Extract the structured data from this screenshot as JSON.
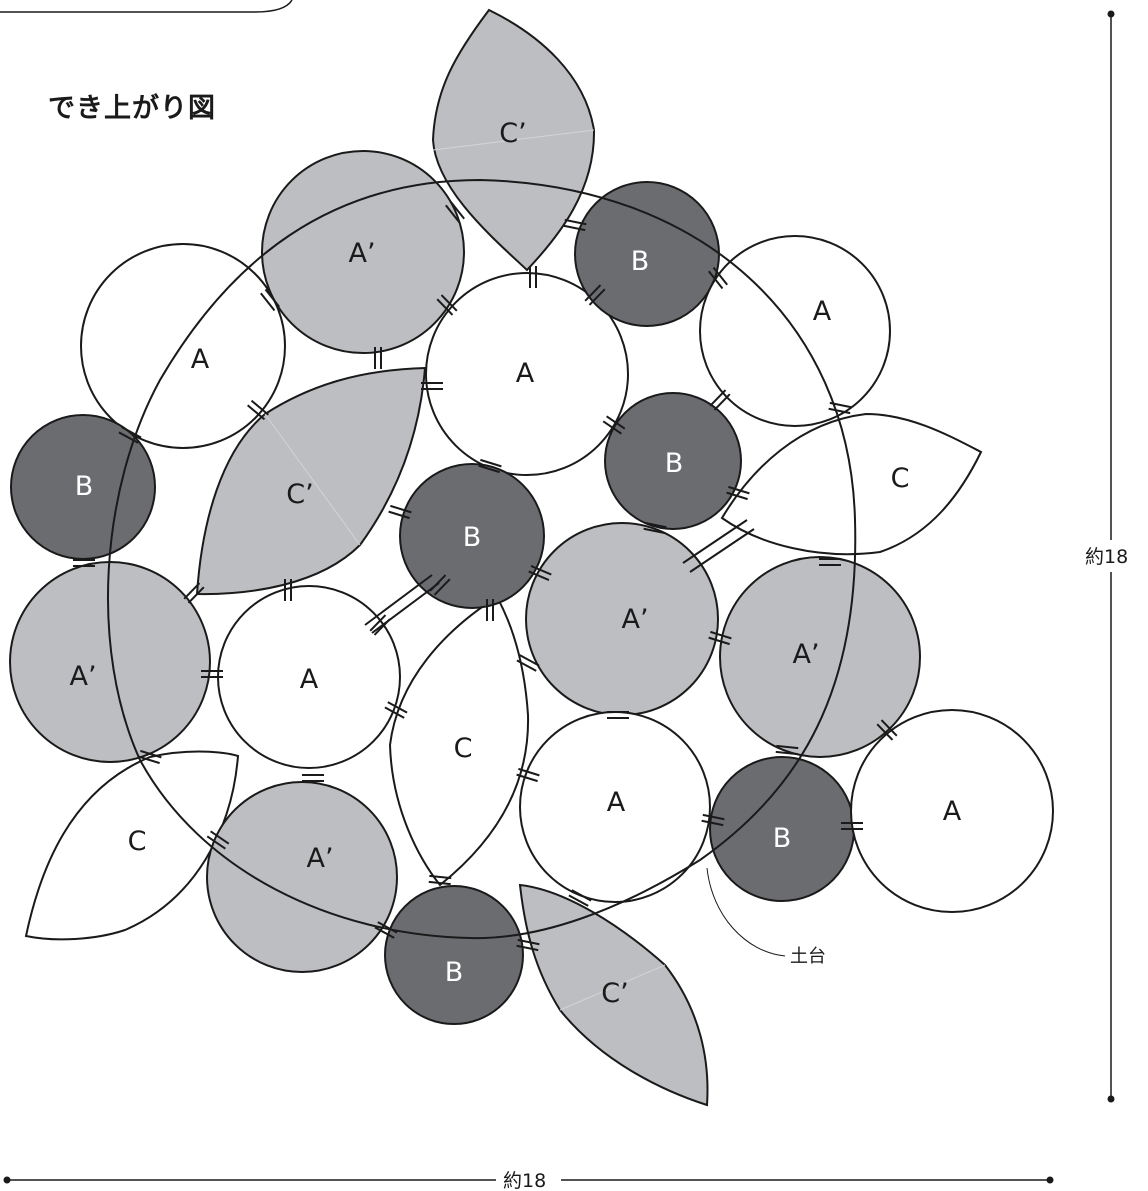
{
  "title": "でき上がり図",
  "colors": {
    "A": "#ffffff",
    "A_prime": "#bdbec1",
    "B": "#6b6c70",
    "C": "#ffffff",
    "C_prime": "#bdbec1",
    "stroke": "#1a1a1a"
  },
  "labels": {
    "A": "A",
    "A_prime": "A’",
    "B": "B",
    "C": "C",
    "C_prime": "C’"
  },
  "base_label": "土台",
  "dim_width": "約18",
  "dim_height": "約18"
}
